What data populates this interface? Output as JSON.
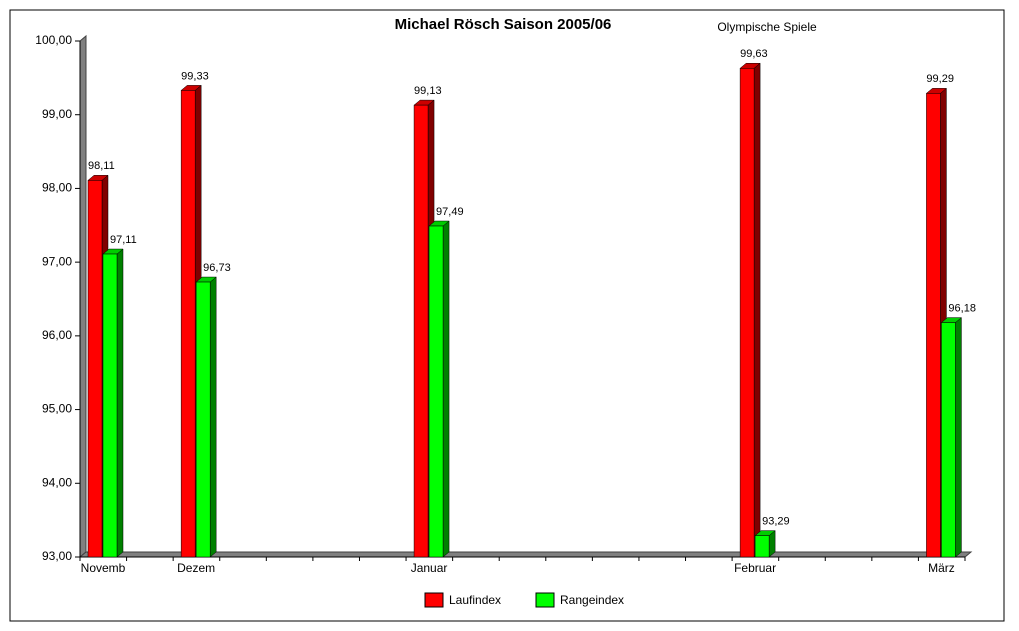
{
  "chart_data": {
    "type": "bar3d",
    "title": "Michael Rösch Saison 2005/06",
    "annotation": "Olympische Spiele",
    "categories": [
      "Novemb",
      null,
      "Dezem",
      null,
      null,
      null,
      null,
      "Januar",
      null,
      null,
      null,
      null,
      null,
      null,
      "Februar",
      null,
      null,
      null,
      "März"
    ],
    "series": [
      {
        "name": "Laufindex",
        "color": "#ff0000",
        "values": [
          98.11,
          null,
          99.33,
          null,
          null,
          null,
          null,
          99.13,
          null,
          null,
          null,
          null,
          null,
          null,
          99.63,
          null,
          null,
          null,
          99.29
        ],
        "value_labels": [
          "98,11",
          null,
          "99,33",
          null,
          null,
          null,
          null,
          "99,13",
          null,
          null,
          null,
          null,
          null,
          null,
          "99,63",
          null,
          null,
          null,
          "99,29"
        ]
      },
      {
        "name": "Rangeindex",
        "color": "#00ff00",
        "values": [
          97.11,
          null,
          96.73,
          null,
          null,
          null,
          null,
          97.49,
          null,
          null,
          null,
          null,
          null,
          null,
          93.29,
          null,
          null,
          null,
          96.18
        ],
        "value_labels": [
          "97,11",
          null,
          "96,73",
          null,
          null,
          null,
          null,
          "97,49",
          null,
          null,
          null,
          null,
          null,
          null,
          "93,29",
          null,
          null,
          null,
          "96,18"
        ]
      }
    ],
    "ylim": [
      93,
      100
    ],
    "yticks": [
      {
        "value": 93,
        "label": "93,00"
      },
      {
        "value": 94,
        "label": "94,00"
      },
      {
        "value": 95,
        "label": "95,00"
      },
      {
        "value": 96,
        "label": "96,00"
      },
      {
        "value": 97,
        "label": "97,00"
      },
      {
        "value": 98,
        "label": "98,00"
      },
      {
        "value": 99,
        "label": "99,00"
      },
      {
        "value": 100,
        "label": "100,00"
      }
    ],
    "legend": "bottom"
  }
}
